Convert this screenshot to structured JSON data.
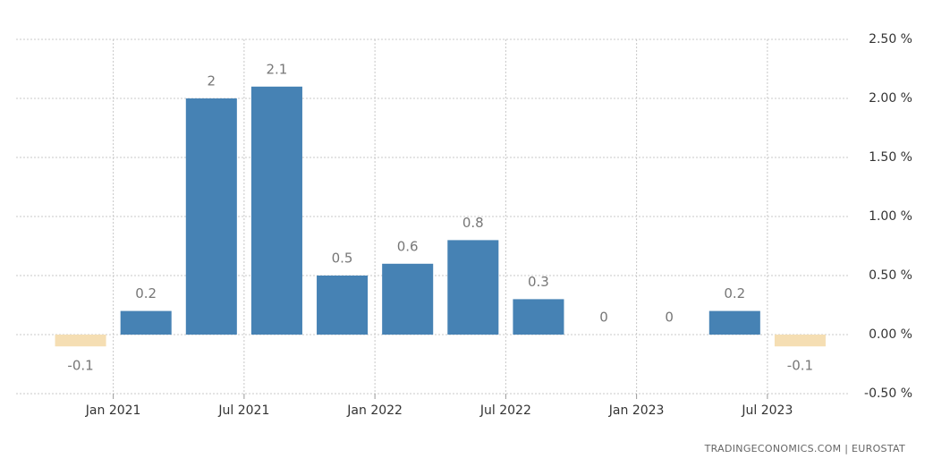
{
  "chart_data": {
    "type": "bar",
    "categories": [
      null,
      null,
      null,
      null,
      null,
      null,
      null,
      null,
      null,
      null,
      null,
      null
    ],
    "values": [
      -0.1,
      0.2,
      2,
      2.1,
      0.5,
      0.6,
      0.8,
      0.3,
      0,
      0,
      0.2,
      -0.1
    ],
    "color": "#4682b4",
    "negative_color": "#f5deb3",
    "x_labels": [
      "Jan 2021",
      "Jul 2021",
      "Jan 2022",
      "Jul 2022",
      "Jan 2023",
      "Jul 2023"
    ],
    "ylim": [
      -0.5,
      2.5
    ],
    "yticks": [
      {
        "value": -0.5,
        "label": "-0.50 %"
      },
      {
        "value": 0,
        "label": "0.00 %"
      },
      {
        "value": 0.5,
        "label": "0.50 %"
      },
      {
        "value": 1,
        "label": "1.00 %"
      },
      {
        "value": 1.5,
        "label": "1.50 %"
      },
      {
        "value": 2,
        "label": "2.00 %"
      },
      {
        "value": 2.5,
        "label": "2.50 %"
      }
    ],
    "grid": true,
    "source": "TRADINGECONOMICS.COM  |  EUROSTAT"
  }
}
